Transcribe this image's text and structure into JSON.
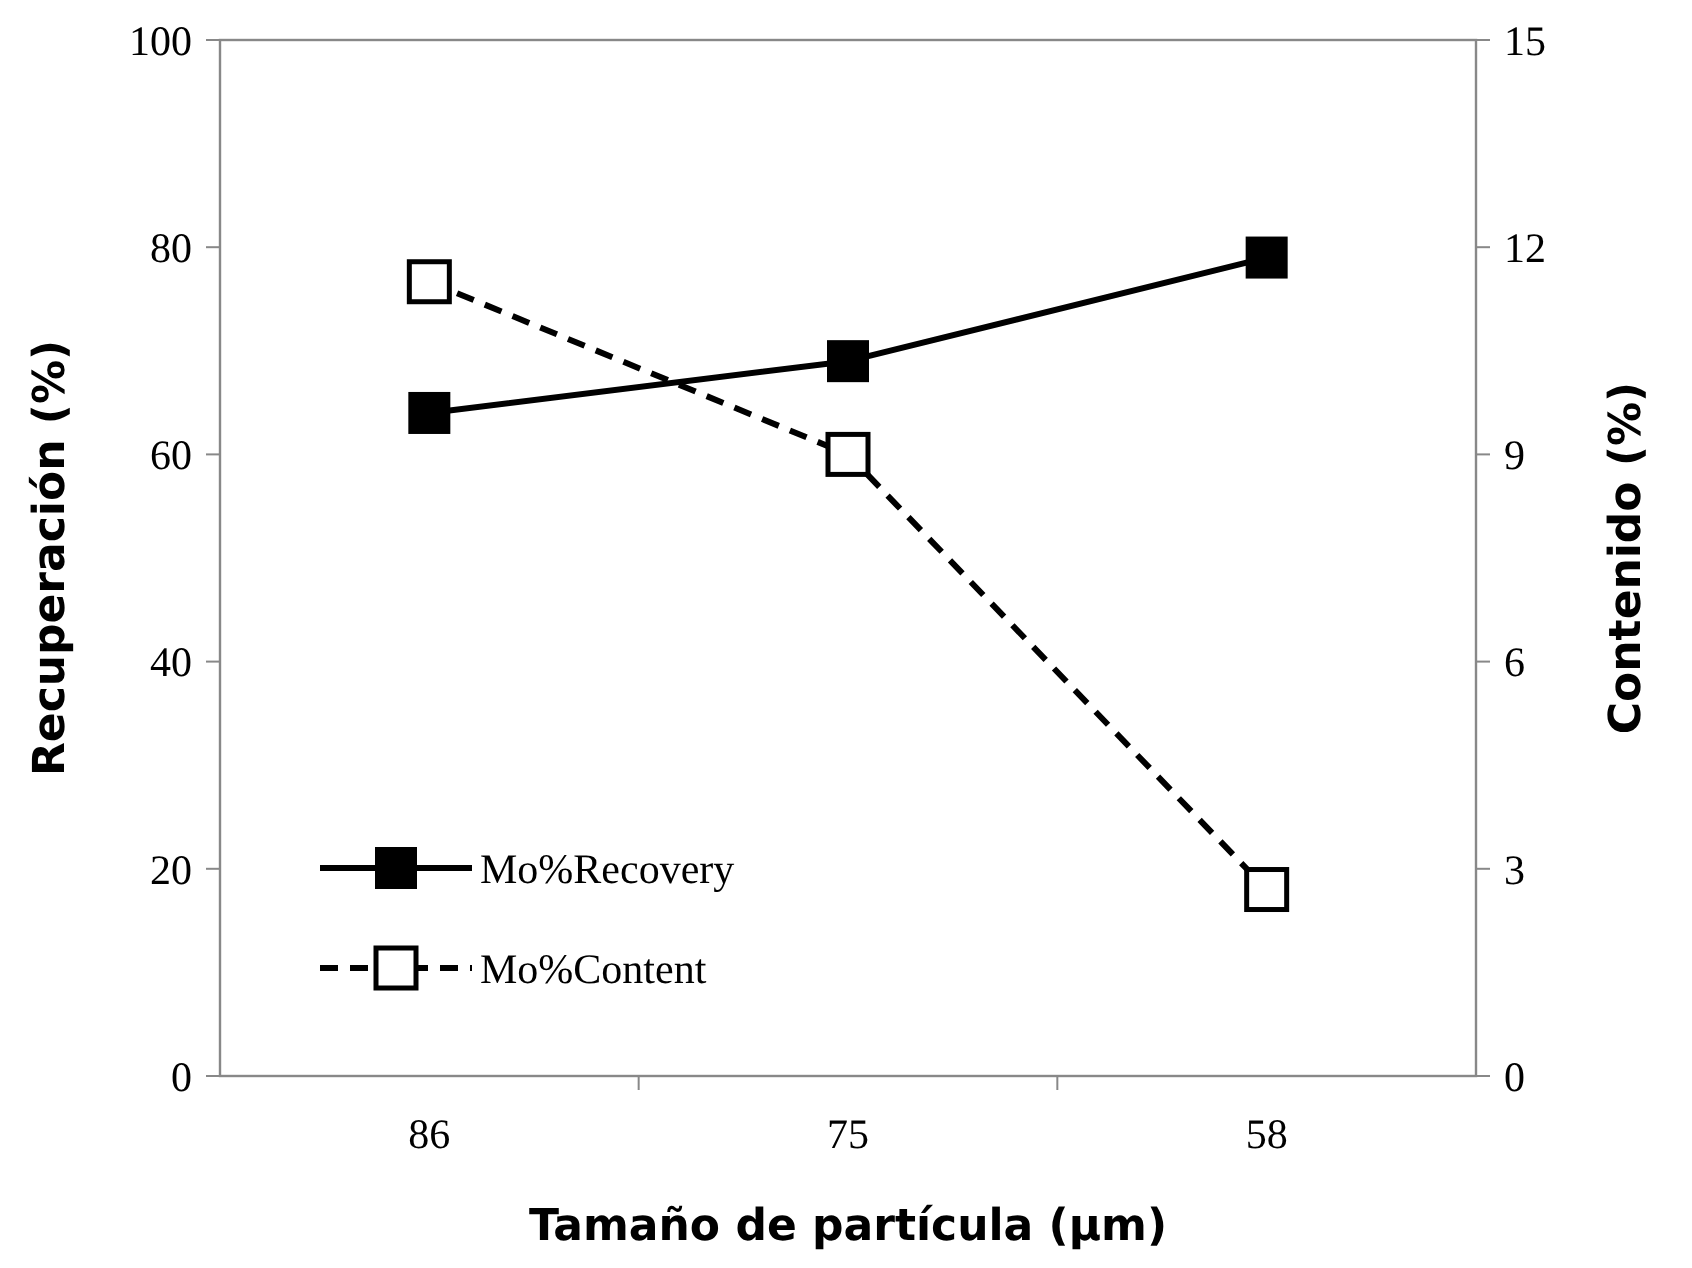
{
  "chart_data": {
    "type": "line",
    "xlabel": "Tamaño de partícula (μm)",
    "ylabel": "Recuperación (%)",
    "y2label": "Contenido (%)",
    "categories": [
      "86",
      "75",
      "58"
    ],
    "series": [
      {
        "name": "Mo%Recovery",
        "color": "#000000",
        "values": [
          64,
          69,
          79
        ],
        "marker": "square",
        "line_style": "solid"
      },
      {
        "name": "Mo%Content",
        "color": "#000000",
        "values": [
          11.5,
          9,
          2.7
        ],
        "axis": "y2",
        "marker": "square",
        "line_style": "dashed"
      }
    ],
    "ylim": [
      0,
      100
    ],
    "yticks": [
      0,
      20,
      40,
      60,
      80,
      100
    ],
    "y2lim": [
      0,
      15
    ],
    "y2ticks": [
      0,
      3,
      6,
      9,
      12,
      15
    ],
    "grid": false,
    "legend": "bottom left"
  }
}
